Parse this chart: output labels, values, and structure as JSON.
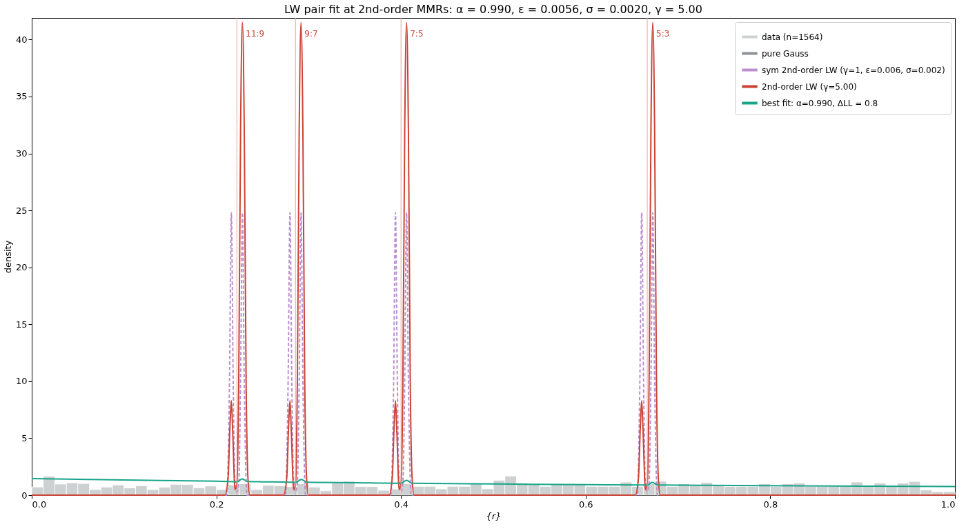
{
  "chart_data": {
    "type": "histogram",
    "title": "LW pair fit at 2nd-order MMRs:  α = 0.990, ε = 0.0056, σ = 0.0020, γ = 5.00",
    "xlabel": "{r}",
    "ylabel": "density",
    "xlim": [
      0,
      1
    ],
    "ylim": [
      0,
      41.9
    ],
    "xticks": [
      {
        "value": 0,
        "label": "0.0"
      },
      {
        "value": 0.2,
        "label": "0.2"
      },
      {
        "value": 0.4,
        "label": "0.4"
      },
      {
        "value": 0.6,
        "label": "0.6"
      },
      {
        "value": 0.8,
        "label": "0.8"
      },
      {
        "value": 1,
        "label": "1.0"
      }
    ],
    "yticks": [
      0,
      5,
      10,
      15,
      20,
      25,
      30,
      35,
      40
    ],
    "grid": false,
    "legend": "top right",
    "series": [
      {
        "name": "data (n=1564)",
        "color": "#cdd1d1",
        "bins": [
          0,
          0.0125,
          0.025,
          0.0375,
          0.05,
          0.0625,
          0.075,
          0.0875,
          0.1,
          0.1125,
          0.125,
          0.1375,
          0.15,
          0.1625,
          0.175,
          0.1875,
          0.2,
          0.2125,
          0.225,
          0.2375,
          0.25,
          0.2625,
          0.275,
          0.2875,
          0.3,
          0.3125,
          0.325,
          0.3375,
          0.35,
          0.3625,
          0.375,
          0.3875,
          0.4,
          0.4125,
          0.425,
          0.4375,
          0.45,
          0.4625,
          0.475,
          0.4875,
          0.5,
          0.5125,
          0.525,
          0.5375,
          0.55,
          0.5625,
          0.575,
          0.5875,
          0.6,
          0.6125,
          0.625,
          0.6375,
          0.65,
          0.6625,
          0.675,
          0.6875,
          0.7,
          0.7125,
          0.725,
          0.7375,
          0.75,
          0.7625,
          0.775,
          0.7875,
          0.8,
          0.8125,
          0.825,
          0.8375,
          0.85,
          0.8625,
          0.875,
          0.8875,
          0.9,
          0.9125,
          0.925,
          0.9375,
          0.95,
          0.9625,
          0.975,
          0.9875,
          1
        ],
        "values": [
          0.71,
          1.66,
          0.97,
          1.08,
          1.02,
          0.49,
          0.71,
          0.89,
          0.64,
          0.82,
          0.49,
          0.69,
          0.95,
          0.93,
          0.64,
          0.8,
          0.49,
          0.9,
          1.0,
          0.49,
          0.86,
          0.82,
          0.75,
          1.0,
          0.71,
          0.38,
          1.1,
          1.22,
          0.75,
          0.75,
          0.42,
          0.53,
          1.0,
          0.77,
          0.77,
          0.55,
          0.77,
          0.77,
          1.06,
          0.55,
          1.3,
          1.68,
          1.06,
          0.93,
          0.77,
          0.97,
          0.93,
          0.97,
          0.77,
          0.77,
          0.77,
          1.15,
          0.77,
          1.0,
          1.22,
          0.77,
          1.0,
          0.9,
          1.1,
          0.9,
          0.77,
          0.77,
          0.77,
          1.0,
          0.77,
          1.0,
          1.06,
          0.77,
          0.77,
          0.77,
          0.77,
          1.15,
          0.77,
          1.06,
          0.77,
          1.06,
          1.2,
          0.45,
          0.3,
          0.3
        ]
      },
      {
        "name": "pure Gauss",
        "type": "line",
        "color": "#8c9396",
        "line_style": "solid"
      },
      {
        "name": "sym 2nd-order LW (γ=1, ε=0.006, σ=0.002)",
        "type": "line",
        "color": "#bb8fce",
        "line_style": "dashed",
        "x": [
          0,
          0.2112,
          0.2142,
          0.2162,
          0.2182,
          0.2202,
          0.2222,
          0.2242,
          0.2262,
          0.2282,
          0.2302,
          0.2332,
          0.2747,
          0.2777,
          0.2797,
          0.2817,
          0.2837,
          0.2857,
          0.2877,
          0.2897,
          0.2917,
          0.2937,
          0.2967,
          0.389,
          0.392,
          0.394,
          0.396,
          0.398,
          0.4,
          0.402,
          0.404,
          0.406,
          0.408,
          0.411,
          0.6557,
          0.6587,
          0.6607,
          0.6627,
          0.6647,
          0.6667,
          0.6687,
          0.6707,
          0.6727,
          0.6747,
          0.6777,
          1
        ],
        "values": [
          0,
          0,
          10,
          24.8,
          10,
          1,
          0.3,
          1,
          10,
          24.8,
          10,
          0,
          0,
          10,
          24.8,
          10,
          1,
          0.3,
          1,
          10,
          24.8,
          10,
          0,
          0,
          10,
          24.8,
          10,
          1,
          0.3,
          1,
          10,
          24.8,
          10,
          0,
          0,
          10,
          24.8,
          10,
          1,
          0.3,
          1,
          10,
          24.8,
          10,
          0,
          0
        ]
      },
      {
        "name": "2nd-order LW (γ=5.00)",
        "type": "line",
        "color": "#cb4335",
        "line_style": "solid",
        "x": [
          0,
          0.2092,
          0.2127,
          0.2147,
          0.2162,
          0.2177,
          0.2202,
          0.2222,
          0.2242,
          0.2262,
          0.2282,
          0.2302,
          0.2322,
          0.2342,
          0.2362,
          0.2727,
          0.2762,
          0.2782,
          0.2797,
          0.2812,
          0.2837,
          0.2857,
          0.2877,
          0.2897,
          0.2917,
          0.2937,
          0.2957,
          0.2977,
          0.2997,
          0.387,
          0.3905,
          0.3925,
          0.394,
          0.3955,
          0.398,
          0.4,
          0.402,
          0.404,
          0.406,
          0.408,
          0.41,
          0.412,
          0.414,
          0.6537,
          0.6572,
          0.6592,
          0.6607,
          0.6622,
          0.6647,
          0.6667,
          0.6687,
          0.6707,
          0.6727,
          0.6747,
          0.6767,
          0.6787,
          0.6807,
          1
        ],
        "values": [
          0,
          0,
          1.5,
          6,
          8.3,
          5.5,
          0.5,
          1,
          10,
          32,
          41.5,
          32,
          10,
          1.5,
          0,
          0,
          1.5,
          6,
          8.3,
          5.5,
          0.5,
          1,
          10,
          32,
          41.5,
          32,
          10,
          1.5,
          0,
          0,
          1.5,
          6,
          8.3,
          5.5,
          0.5,
          1,
          10,
          32,
          41.5,
          32,
          10,
          1.5,
          0,
          0,
          1.5,
          6,
          8.3,
          5.5,
          0.5,
          1,
          10,
          32,
          41.5,
          32,
          10,
          1.5,
          0,
          0
        ]
      },
      {
        "name": "best fit:  α=0.990, ΔLL = 0.8",
        "type": "line",
        "color": "#17a589",
        "line_style": "solid",
        "x": [
          0,
          0.1,
          0.2,
          0.215,
          0.222,
          0.228,
          0.234,
          0.25,
          0.28,
          0.2857,
          0.292,
          0.298,
          0.35,
          0.395,
          0.4,
          0.406,
          0.412,
          0.5,
          0.6,
          0.66,
          0.6667,
          0.672,
          0.678,
          0.8,
          0.9,
          1.0
        ],
        "values": [
          1.45,
          1.33,
          1.22,
          1.2,
          1.15,
          1.42,
          1.19,
          1.17,
          1.14,
          1.12,
          1.38,
          1.13,
          1.09,
          1.05,
          1.05,
          1.3,
          1.04,
          0.98,
          0.92,
          0.9,
          0.88,
          1.12,
          0.89,
          0.83,
          0.79,
          0.75
        ]
      }
    ],
    "ref_lines": [
      {
        "axis": "x",
        "value": 0.2222,
        "color": "#e6a49c"
      },
      {
        "axis": "x",
        "value": 0.2857,
        "color": "#e6a49c"
      },
      {
        "axis": "x",
        "value": 0.4,
        "color": "#e6a49c"
      },
      {
        "axis": "x",
        "value": 0.6667,
        "color": "#e6a49c"
      }
    ],
    "annotations": [
      {
        "text": "11:9",
        "x": 0.2222,
        "y": 40.5
      },
      {
        "text": "9:7",
        "x": 0.2857,
        "y": 40.5
      },
      {
        "text": "7:5",
        "x": 0.4,
        "y": 40.5
      },
      {
        "text": "5:3",
        "x": 0.6667,
        "y": 40.5
      }
    ]
  }
}
